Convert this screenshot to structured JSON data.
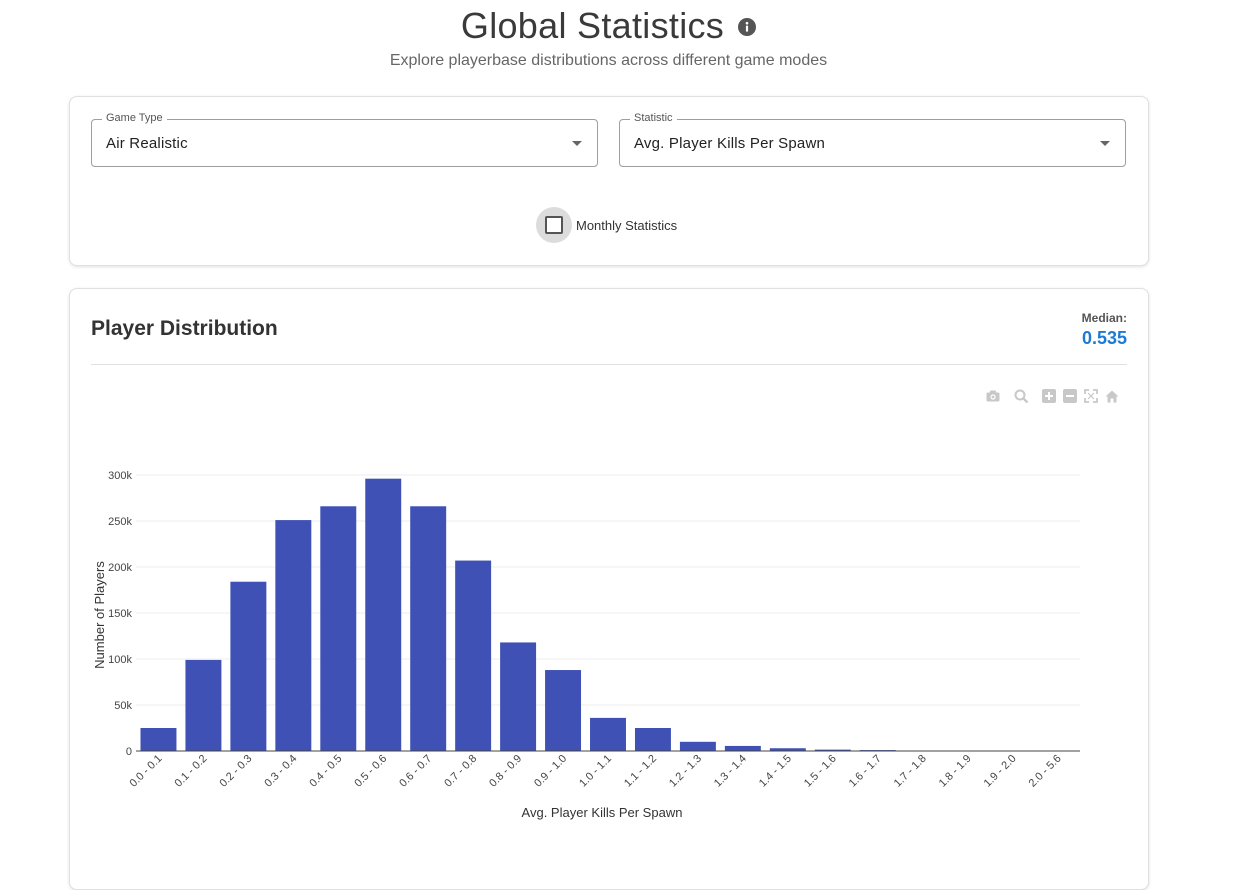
{
  "header": {
    "title": "Global Statistics",
    "subtitle": "Explore playerbase distributions across different game modes"
  },
  "filters": {
    "game_type_label": "Game Type",
    "game_type_value": "Air Realistic",
    "statistic_label": "Statistic",
    "statistic_value": "Avg. Player Kills Per Spawn",
    "monthly_label": "Monthly Statistics",
    "monthly_checked": false
  },
  "chart_card": {
    "title": "Player Distribution",
    "median_label": "Median:",
    "median_value": "0.535"
  },
  "modebar": [
    "camera-icon",
    "zoom-icon",
    "zoom-in-icon",
    "zoom-out-icon",
    "autoscale-icon",
    "home-icon"
  ],
  "colors": {
    "bar": "#3f51b5",
    "median": "#1e7bd4"
  },
  "chart_data": {
    "type": "bar",
    "categories": [
      "0.0 - 0.1",
      "0.1 - 0.2",
      "0.2 - 0.3",
      "0.3 - 0.4",
      "0.4 - 0.5",
      "0.5 - 0.6",
      "0.6 - 0.7",
      "0.7 - 0.8",
      "0.8 - 0.9",
      "0.9 - 1.0",
      "1.0 - 1.1",
      "1.1 - 1.2",
      "1.2 - 1.3",
      "1.3 - 1.4",
      "1.4 - 1.5",
      "1.5 - 1.6",
      "1.6 - 1.7",
      "1.7 - 1.8",
      "1.8 - 1.9",
      "1.9 - 2.0",
      "2.0 - 5.6"
    ],
    "values": [
      25000,
      99000,
      184000,
      251000,
      266000,
      296000,
      266000,
      207000,
      118000,
      88000,
      36000,
      25000,
      10000,
      5500,
      3000,
      1500,
      1000,
      500,
      300,
      200,
      300
    ],
    "xlabel": "Avg. Player Kills Per Spawn",
    "ylabel": "Number of Players",
    "ylim": [
      0,
      300000
    ],
    "yticks": [
      0,
      50000,
      100000,
      150000,
      200000,
      250000,
      300000
    ],
    "ytick_labels": [
      "0",
      "50k",
      "100k",
      "150k",
      "200k",
      "250k",
      "300k"
    ],
    "grid": true,
    "legend": "none"
  }
}
